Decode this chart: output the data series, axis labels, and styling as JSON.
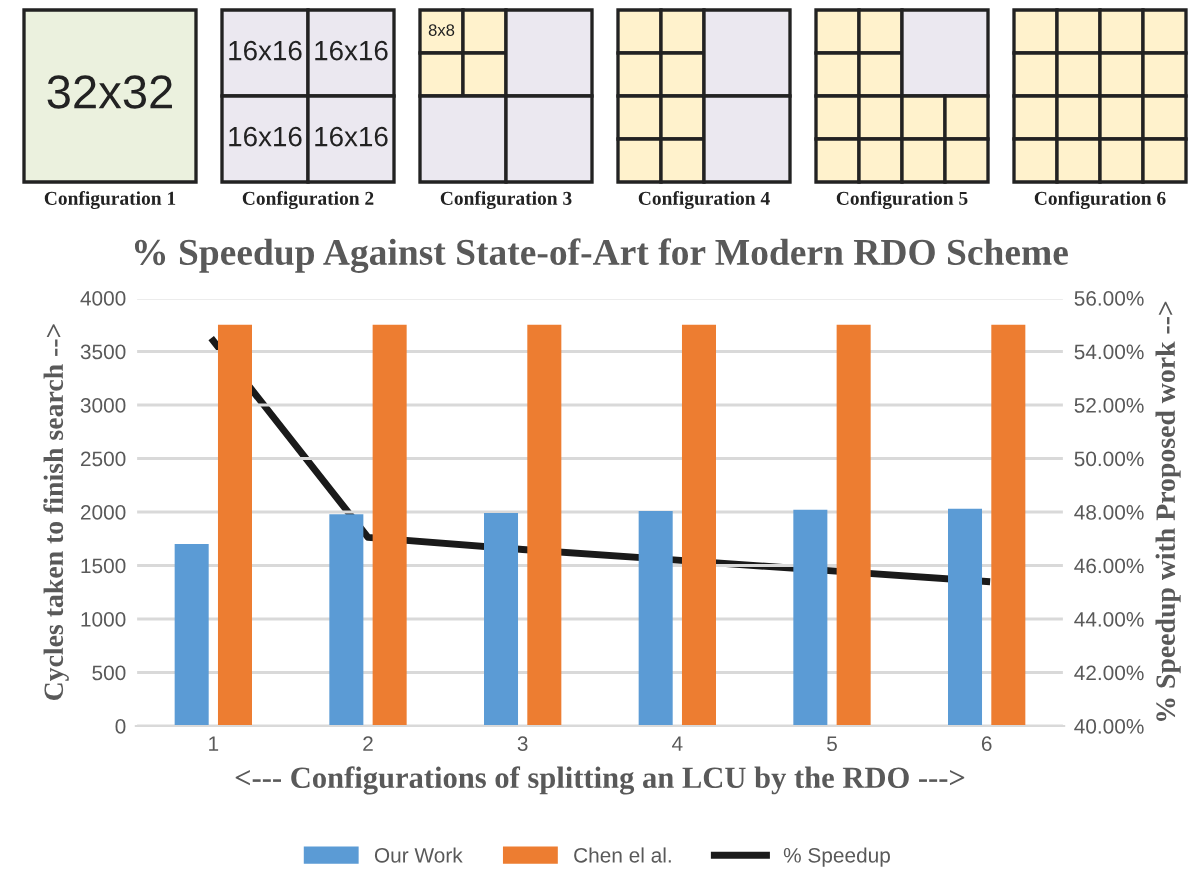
{
  "chart_data": {
    "type": "bar",
    "title": "% Speedup Against State-of-Art for Modern RDO Scheme",
    "xlabel": "<--- Configurations of splitting an LCU by the RDO --->",
    "ylabel": "Cycles taken to finish search -->",
    "y2label": "% Speedup with Proposed work -->",
    "categories": [
      "1",
      "2",
      "3",
      "4",
      "5",
      "6"
    ],
    "series": [
      {
        "name": "Our Work",
        "color": "#5b9bd5",
        "values": [
          1700,
          1980,
          1990,
          2010,
          2020,
          2030
        ]
      },
      {
        "name": "Chen el al.",
        "color": "#ed7d31",
        "values": [
          3750,
          3750,
          3750,
          3750,
          3750,
          3750
        ]
      },
      {
        "name": "% Speedup",
        "type": "line",
        "axis": "y2",
        "color": "#1a1a1a",
        "values": [
          54.4,
          47.05,
          46.6,
          46.2,
          45.8,
          45.4
        ]
      }
    ],
    "ylim": [
      0,
      4000
    ],
    "yticks": [
      0,
      500,
      1000,
      1500,
      2000,
      2500,
      3000,
      3500,
      4000
    ],
    "y2lim": [
      40,
      56
    ],
    "y2ticks": [
      {
        "value": 40,
        "label": "40.00%"
      },
      {
        "value": 42,
        "label": "42.00%"
      },
      {
        "value": 44,
        "label": "44.00%"
      },
      {
        "value": 46,
        "label": "46.00%"
      },
      {
        "value": 48,
        "label": "48.00%"
      },
      {
        "value": 50,
        "label": "50.00%"
      },
      {
        "value": 52,
        "label": "52.00%"
      },
      {
        "value": 54,
        "label": "54.00%"
      },
      {
        "value": 56,
        "label": "56.00%"
      }
    ],
    "grid": "y",
    "legend": "bottom",
    "marker": "none",
    "line_style": "solid",
    "annotations": [
      "32x32",
      "16x16",
      "16x16",
      "16x16",
      "16x16",
      "8x8",
      "Configuration 1",
      "Configuration 2",
      "Configuration 3",
      "Configuration 4",
      "Configuration 5",
      "Configuration 6"
    ]
  }
}
